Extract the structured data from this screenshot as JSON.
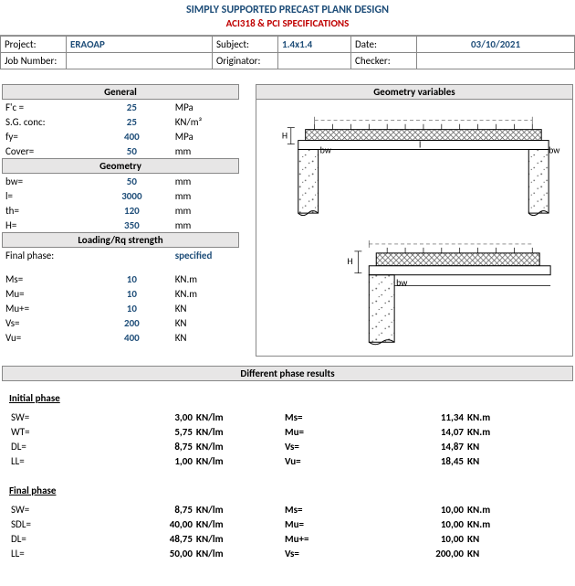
{
  "title": {
    "main": "SIMPLY SUPPORTED PRECAST PLANK DESIGN",
    "sub": "ACI318 & PCI SPECIFICATIONS"
  },
  "header": {
    "project_label": "Project:",
    "project_value": "ERAOAP",
    "subject_label": "Subject:",
    "subject_value": "1.4x1.4",
    "date_label": "Date:",
    "date_value": "03/10/2021",
    "job_label": "Job Number:",
    "job_value": "",
    "originator_label": "Originator:",
    "originator_value": "",
    "checker_label": "Checker:",
    "checker_value": ""
  },
  "sections": {
    "general_head": "General",
    "geometry_head": "Geometry",
    "loading_head": "Loading/Rq strength",
    "geomvar_head": "Geometry variables",
    "results_head": "Different phase results",
    "initial_phase_title": "Initial phase",
    "final_phase_title": "Final phase",
    "final_phase_label": "Final phase:",
    "final_phase_value": "specified"
  },
  "params": {
    "general": [
      {
        "name": "F'c =",
        "value": "25",
        "unit": "MPa"
      },
      {
        "name": "S.G. conc:",
        "value": "25",
        "unit": "KN/m³"
      },
      {
        "name": "fy=",
        "value": "400",
        "unit": "MPa"
      },
      {
        "name": "Cover=",
        "value": "50",
        "unit": "mm"
      }
    ],
    "geometry": [
      {
        "name": "bw=",
        "value": "50",
        "unit": "mm"
      },
      {
        "name": "l=",
        "value": "3000",
        "unit": "mm"
      },
      {
        "name": "th=",
        "value": "120",
        "unit": "mm"
      },
      {
        "name": "H=",
        "value": "350",
        "unit": "mm"
      }
    ],
    "loading": [
      {
        "name": "Ms=",
        "value": "10",
        "unit": "KN.m"
      },
      {
        "name": "Mu=",
        "value": "10",
        "unit": "KN.m"
      },
      {
        "name": "Mu+=",
        "value": "10",
        "unit": "KN"
      },
      {
        "name": "Vs=",
        "value": "200",
        "unit": "KN"
      },
      {
        "name": "Vu=",
        "value": "400",
        "unit": "KN"
      }
    ]
  },
  "diagram": {
    "labels": {
      "H": "H",
      "l": "l",
      "bw": "bw"
    },
    "colors": {
      "stroke": "#000000",
      "hatch": "#888888",
      "dash": "#555555"
    }
  },
  "results": {
    "initial": {
      "left": [
        {
          "name": "SW=",
          "value": "3,00",
          "unit": "KN/lm"
        },
        {
          "name": "WT=",
          "value": "5,75",
          "unit": "KN/lm"
        },
        {
          "name": "DL=",
          "value": "8,75",
          "unit": "KN/lm"
        },
        {
          "name": "LL=",
          "value": "1,00",
          "unit": "KN/lm"
        }
      ],
      "right": [
        {
          "name": "Ms=",
          "value": "11,34",
          "unit": "KN.m"
        },
        {
          "name": "Mu=",
          "value": "14,07",
          "unit": "KN.m"
        },
        {
          "name": "Vs=",
          "value": "14,87",
          "unit": "KN"
        },
        {
          "name": "Vu=",
          "value": "18,45",
          "unit": "KN"
        }
      ]
    },
    "final": {
      "left": [
        {
          "name": "SW=",
          "value": "8,75",
          "unit": "KN/lm"
        },
        {
          "name": "SDL=",
          "value": "40,00",
          "unit": "KN/lm"
        },
        {
          "name": "DL=",
          "value": "48,75",
          "unit": "KN/lm"
        },
        {
          "name": "LL=",
          "value": "50,00",
          "unit": "KN/lm"
        }
      ],
      "right": [
        {
          "name": "Ms=",
          "value": "10,00",
          "unit": "KN.m"
        },
        {
          "name": "Mu=",
          "value": "10,00",
          "unit": "KN.m"
        },
        {
          "name": "Mu+=",
          "value": "10,00",
          "unit": "KN"
        },
        {
          "name": "Vs=",
          "value": "200,00",
          "unit": "KN"
        }
      ]
    }
  }
}
